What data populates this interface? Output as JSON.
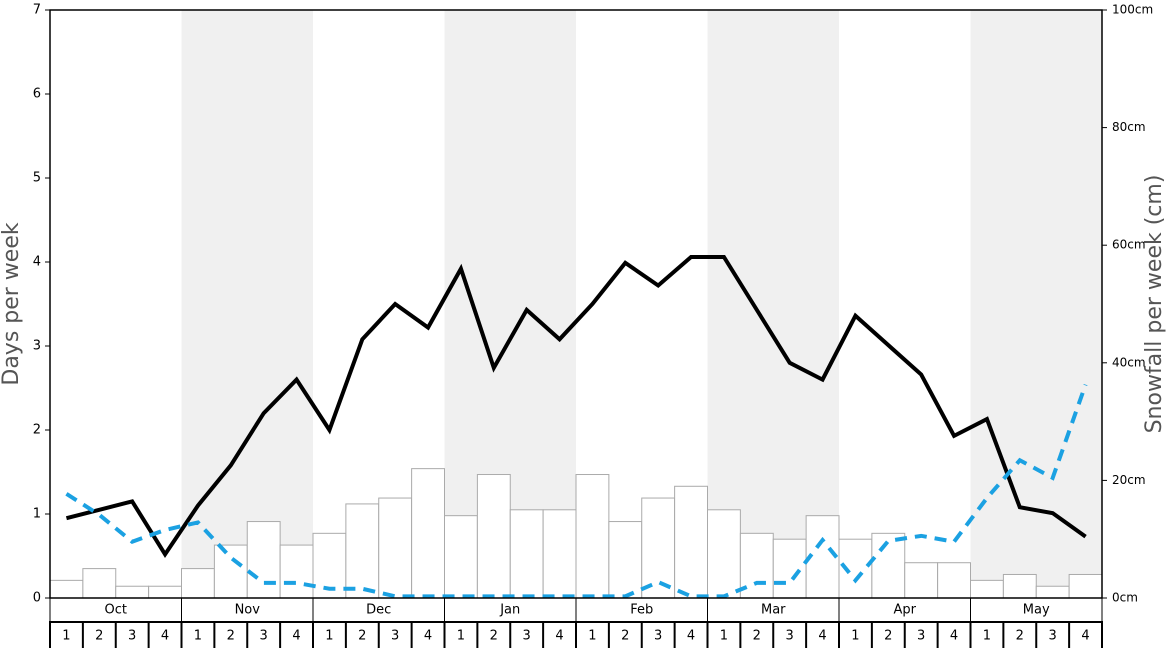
{
  "chart_data": {
    "type": "combo",
    "y_label": "Days per week",
    "y2_label": "Snowfall per week (cm)",
    "months": [
      "Oct",
      "Nov",
      "Dec",
      "Jan",
      "Feb",
      "Mar",
      "Apr",
      "May"
    ],
    "categories": [
      "1",
      "2",
      "3",
      "4",
      "1",
      "2",
      "3",
      "4",
      "1",
      "2",
      "3",
      "4",
      "1",
      "2",
      "3",
      "4",
      "1",
      "2",
      "3",
      "4",
      "1",
      "2",
      "3",
      "4",
      "1",
      "2",
      "3",
      "4",
      "1",
      "2",
      "3",
      "4"
    ],
    "ylim": [
      0,
      7
    ],
    "yticks": [
      0,
      1,
      2,
      3,
      4,
      5,
      6,
      7
    ],
    "y2lim": [
      0,
      100
    ],
    "y2ticks": [
      {
        "value": 0,
        "label": "0cm"
      },
      {
        "value": 20,
        "label": "20cm"
      },
      {
        "value": 40,
        "label": "40cm"
      },
      {
        "value": 60,
        "label": "60cm"
      },
      {
        "value": 80,
        "label": "80cm"
      },
      {
        "value": 100,
        "label": "100cm"
      }
    ],
    "series": [
      {
        "type": "bar",
        "axis": "y2",
        "color": "#ffffff",
        "values": [
          3,
          5,
          2,
          2,
          5,
          9,
          13,
          9,
          11,
          16,
          17,
          22,
          14,
          21,
          15,
          15,
          21,
          13,
          17,
          19,
          15,
          11,
          10,
          14,
          10,
          11,
          6,
          6,
          3,
          4,
          2,
          4
        ]
      },
      {
        "type": "line",
        "color": "#000000",
        "dashed": false,
        "values": [
          0.95,
          1.05,
          1.15,
          0.52,
          1.1,
          1.58,
          2.2,
          2.6,
          2.0,
          3.08,
          3.5,
          3.22,
          3.92,
          2.74,
          3.43,
          3.08,
          3.5,
          3.99,
          3.72,
          4.06,
          4.06,
          3.43,
          2.8,
          2.6,
          3.36,
          3.01,
          2.66,
          1.93,
          2.13,
          1.08,
          1.01,
          0.73
        ]
      },
      {
        "type": "line",
        "color": "#1ba1e2",
        "dashed": true,
        "values": [
          1.24,
          0.99,
          0.67,
          0.81,
          0.9,
          0.48,
          0.18,
          0.18,
          0.11,
          0.11,
          0.02,
          0.02,
          0.02,
          0.02,
          0.02,
          0.02,
          0.02,
          0.02,
          0.19,
          0.02,
          0.02,
          0.18,
          0.18,
          0.69,
          0.21,
          0.68,
          0.74,
          0.67,
          1.19,
          1.64,
          1.43,
          2.54
        ]
      }
    ]
  }
}
